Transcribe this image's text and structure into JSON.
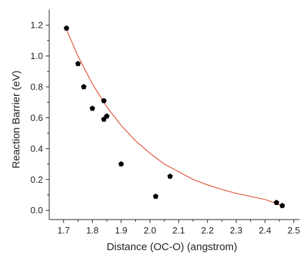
{
  "chart_data": {
    "type": "scatter",
    "title": "",
    "xlabel": "Distance (OC-O) (angstrom)",
    "ylabel": "Reaction Barrier (eV)",
    "xlim": [
      1.65,
      2.52
    ],
    "ylim": [
      -0.06,
      1.3
    ],
    "xticks": [
      1.7,
      1.8,
      1.9,
      2.0,
      2.1,
      2.2,
      2.3,
      2.4,
      2.5
    ],
    "xtick_labels": [
      "1.7",
      "1.8",
      "1.9",
      "2.0",
      "2.1",
      "2.2",
      "2.3",
      "2.4",
      "2.5"
    ],
    "yticks": [
      0.0,
      0.2,
      0.4,
      0.6,
      0.8,
      1.0,
      1.2
    ],
    "ytick_labels": [
      "0.0",
      "0.2",
      "0.4",
      "0.6",
      "0.8",
      "1.0",
      "1.2"
    ],
    "grid": false,
    "series": [
      {
        "kind": "points",
        "marker": "pentagon",
        "color": "#000000",
        "x": [
          1.71,
          1.75,
          1.77,
          1.8,
          1.84,
          1.84,
          1.85,
          1.9,
          2.02,
          2.07,
          2.44,
          2.46
        ],
        "y": [
          1.18,
          0.95,
          0.8,
          0.66,
          0.71,
          0.59,
          0.61,
          0.3,
          0.09,
          0.22,
          0.05,
          0.03
        ]
      },
      {
        "kind": "fit",
        "fit_type": "exponential decay",
        "color": "#e0533a",
        "x": [
          1.71,
          1.75,
          1.8,
          1.85,
          1.9,
          1.95,
          2.0,
          2.05,
          2.1,
          2.15,
          2.2,
          2.25,
          2.3,
          2.35,
          2.4,
          2.46
        ],
        "y": [
          1.17,
          1.0,
          0.82,
          0.67,
          0.55,
          0.45,
          0.37,
          0.3,
          0.25,
          0.2,
          0.165,
          0.135,
          0.11,
          0.09,
          0.07,
          0.03
        ]
      }
    ]
  }
}
